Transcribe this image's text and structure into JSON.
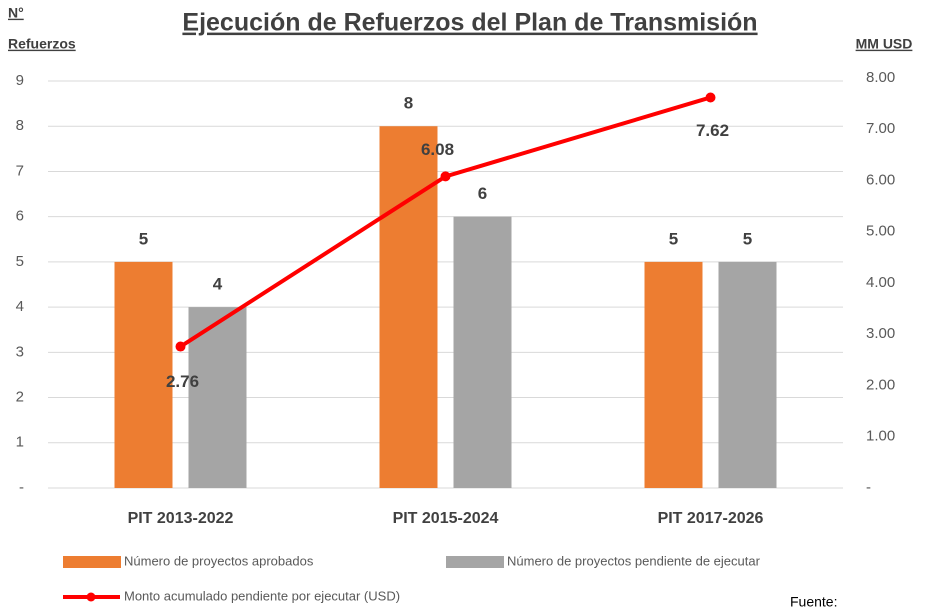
{
  "chart_data": {
    "type": "bar",
    "title": "Ejecución de Refuerzos del Plan de Transmisión",
    "ylabel": [
      "N°",
      "Refuerzos"
    ],
    "y2label": "MM USD",
    "note": "Fuente:",
    "categories": [
      "PIT 2013-2022",
      "PIT 2015-2024",
      "PIT 2017-2026"
    ],
    "series": [
      {
        "name": "Número de proyectos aprobados",
        "color": "#ED7D31",
        "type": "bar",
        "values": [
          5,
          8,
          5
        ]
      },
      {
        "name": "Número de proyectos pendiente de ejecutar",
        "color": "#A5A5A5",
        "type": "bar",
        "values": [
          4,
          6,
          5
        ]
      },
      {
        "name": "Monto acumulado pendiente por ejecutar (USD)",
        "color": "#FF0000",
        "type": "line",
        "axis": "y2",
        "values": [
          2.76,
          6.08,
          7.62
        ]
      }
    ],
    "ylim": [
      0,
      9
    ],
    "yticks": [
      {
        "value": 0,
        "label": "-"
      },
      1,
      2,
      3,
      4,
      5,
      6,
      7,
      8,
      9
    ],
    "y2lim": [
      0,
      8
    ],
    "y2ticks": [
      {
        "value": 0,
        "label": "-"
      },
      {
        "value": 1,
        "label": "1.00"
      },
      {
        "value": 2,
        "label": "2.00"
      },
      {
        "value": 3,
        "label": "3.00"
      },
      {
        "value": 4,
        "label": "4.00"
      },
      {
        "value": 5,
        "label": "5.00"
      },
      {
        "value": 6,
        "label": "6.00"
      },
      {
        "value": 7,
        "label": "7.00"
      },
      {
        "value": 8,
        "label": "8.00"
      }
    ],
    "grid": true
  }
}
